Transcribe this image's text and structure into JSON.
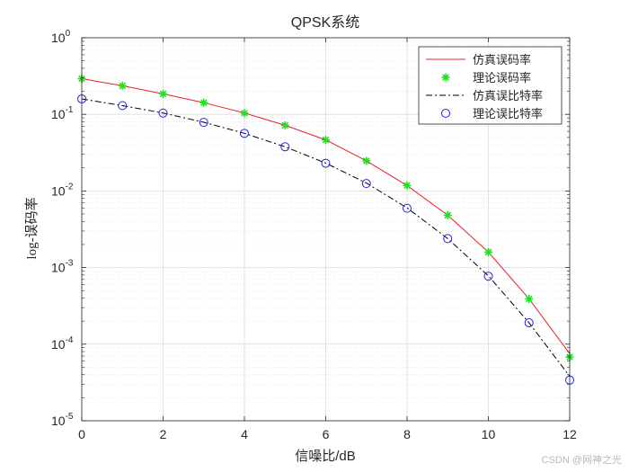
{
  "chart_data": {
    "type": "line",
    "title": "QPSK系统",
    "xlabel": "信噪比/dB",
    "ylabel": "log-误码率",
    "xlim": [
      0,
      12
    ],
    "ylim_log10": [
      -5,
      0
    ],
    "yscale": "log",
    "grid": true,
    "minor_grid": true,
    "legend_position": "top-right",
    "x_ticks": [
      0,
      2,
      4,
      6,
      8,
      10,
      12
    ],
    "y_ticks": [
      {
        "base": "10",
        "exp": "0"
      },
      {
        "base": "10",
        "exp": "-1"
      },
      {
        "base": "10",
        "exp": "-2"
      },
      {
        "base": "10",
        "exp": "-3"
      },
      {
        "base": "10",
        "exp": "-4"
      },
      {
        "base": "10",
        "exp": "-5"
      }
    ],
    "x": [
      0,
      1,
      2,
      3,
      4,
      5,
      6,
      7,
      8,
      9,
      10,
      11,
      12
    ],
    "series": [
      {
        "name": "仿真误码率",
        "style": "solid-line",
        "color": "#e8202a",
        "values": [
          0.292,
          0.236,
          0.185,
          0.142,
          0.104,
          0.0719,
          0.0464,
          0.0247,
          0.0118,
          0.00482,
          0.00159,
          0.00039,
          7.5e-05
        ]
      },
      {
        "name": "理论误码率",
        "style": "star-marker",
        "color": "#20e020",
        "values": [
          0.292,
          0.236,
          0.185,
          0.142,
          0.104,
          0.0719,
          0.0464,
          0.0247,
          0.0118,
          0.00482,
          0.00159,
          0.00039,
          6.8e-05
        ]
      },
      {
        "name": "仿真误比特率",
        "style": "dash-dot-line",
        "color": "#000000",
        "values": [
          0.159,
          0.13,
          0.104,
          0.0789,
          0.0565,
          0.0377,
          0.0231,
          0.0127,
          0.00601,
          0.00239,
          0.00078,
          0.00019,
          3.8e-05
        ]
      },
      {
        "name": "理论误比特率",
        "style": "circle-marker",
        "color": "#2020e8",
        "values": [
          0.159,
          0.13,
          0.104,
          0.0786,
          0.0565,
          0.0377,
          0.023,
          0.0125,
          0.00595,
          0.00239,
          0.00077,
          0.00019,
          3.4e-05
        ]
      }
    ]
  },
  "watermark": "CSDN @网神之光"
}
